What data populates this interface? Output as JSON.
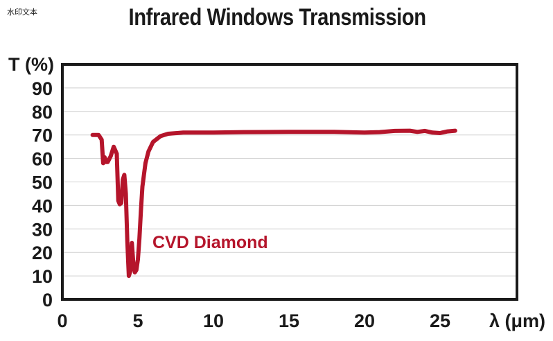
{
  "watermark": "水印文本",
  "chart_data": {
    "type": "line",
    "title": "Infrared Windows Transmission",
    "xlabel": "λ (μm)",
    "ylabel": "T (%)",
    "xlim": [
      0,
      30
    ],
    "ylim": [
      0,
      100
    ],
    "x_ticks": [
      "0",
      "5",
      "10",
      "15",
      "20",
      "25"
    ],
    "y_ticks": [
      "0",
      "10",
      "20",
      "30",
      "40",
      "50",
      "60",
      "70",
      "80",
      "90"
    ],
    "grid": true,
    "series": [
      {
        "name": "CVD Diamond",
        "color": "#b5152b",
        "x": [
          2.0,
          2.4,
          2.6,
          2.7,
          2.8,
          2.9,
          3.0,
          3.2,
          3.4,
          3.6,
          3.7,
          3.8,
          3.9,
          4.0,
          4.1,
          4.2,
          4.3,
          4.4,
          4.5,
          4.6,
          4.7,
          4.8,
          4.9,
          5.0,
          5.1,
          5.2,
          5.3,
          5.5,
          5.7,
          6.0,
          6.5,
          7.0,
          8.0,
          9.0,
          10.0,
          12.0,
          15.0,
          18.0,
          20.0,
          21.0,
          22.0,
          23.0,
          23.5,
          24.0,
          24.5,
          25.0,
          25.5,
          26.0
        ],
        "y": [
          70.0,
          70.0,
          68.0,
          58.0,
          60.5,
          58.5,
          58.5,
          61.0,
          65.0,
          62.0,
          42.0,
          40.5,
          41.0,
          51.0,
          53.0,
          45.0,
          25.0,
          10.0,
          12.0,
          24.0,
          15.0,
          11.5,
          12.5,
          17.0,
          26.0,
          38.0,
          48.0,
          58.0,
          63.0,
          67.0,
          69.5,
          70.5,
          71.0,
          71.0,
          71.0,
          71.2,
          71.3,
          71.3,
          71.0,
          71.2,
          71.7,
          71.8,
          71.3,
          71.7,
          71.0,
          70.8,
          71.5,
          71.8
        ]
      }
    ]
  }
}
